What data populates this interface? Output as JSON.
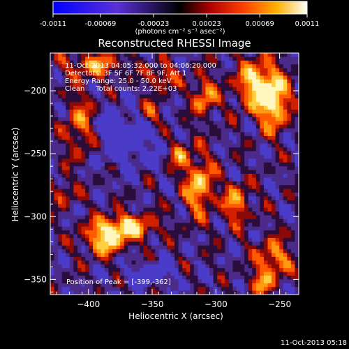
{
  "colorbar": {
    "tick_labels": [
      "-0.0011",
      "-0.00069",
      "-0.00023",
      "0.00023",
      "0.00069",
      "0.0011"
    ],
    "units_label": "(photons cm⁻² s⁻¹ asec⁻²)",
    "range": [
      -0.0011,
      0.0011
    ]
  },
  "chart_data": {
    "type": "heatmap",
    "title": "Reconstructed RHESSI Image",
    "xlabel": "Heliocentric X (arcsec)",
    "ylabel": "Heliocentric Y (arcsec)",
    "xlim": [
      -430,
      -235
    ],
    "ylim": [
      -362,
      -170
    ],
    "xticks": [
      -400,
      -350,
      -300,
      -250
    ],
    "yticks": [
      -350,
      -300,
      -250,
      -200
    ],
    "grid": false,
    "colormap": "rhessi red-temperature (blue/purple negative, red-yellow-white positive)",
    "annotations": [
      "11-Oct-2013 04:05:32.000 to 04:06:20.000",
      "Detectors: 3F 5F 6F 7F 8F 9F, Att 1",
      "Energy Range: 25.0 - 50.0 keV",
      "Clean     Total counts: 2.22E+03"
    ],
    "peak_label": "Position of Peak = [-399,-362]",
    "peak_position": [
      -399,
      -362
    ],
    "total_counts": 2220,
    "energy_range_keV": [
      25.0,
      50.0
    ]
  },
  "footer": {
    "timestamp": "11-Oct-2013 05:18"
  }
}
